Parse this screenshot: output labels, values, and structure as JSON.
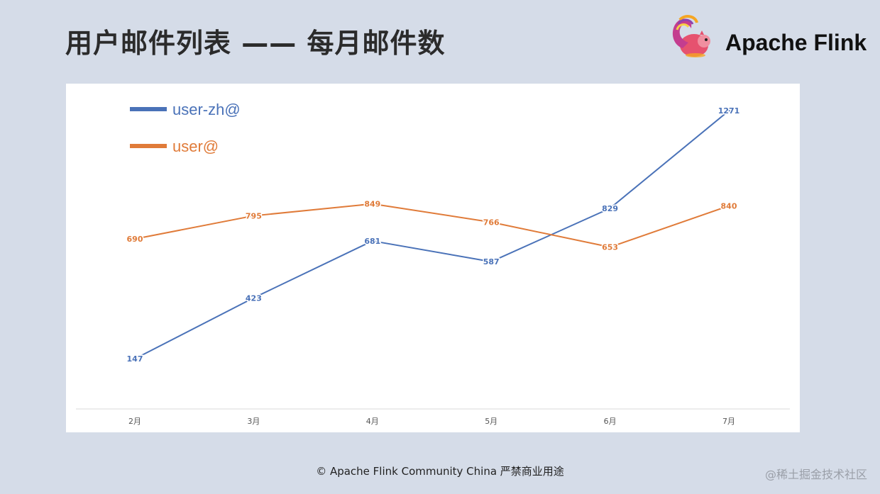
{
  "page": {
    "title": "用户邮件列表 —— 每月邮件数",
    "brand": "Apache Flink",
    "footer": "© Apache Flink Community China  严禁商业用途",
    "watermark": "@稀土掘金技术社区"
  },
  "chart_data": {
    "type": "line",
    "title": "",
    "xlabel": "",
    "ylabel": "",
    "categories": [
      "2月",
      "3月",
      "4月",
      "5月",
      "6月",
      "7月"
    ],
    "ylim": [
      0,
      1400
    ],
    "grid": false,
    "legend_position": "top-left",
    "series": [
      {
        "name": "user-zh@",
        "color": "#4a72b8",
        "values": [
          147,
          423,
          681,
          587,
          829,
          1271
        ]
      },
      {
        "name": "user@",
        "color": "#e07b39",
        "values": [
          690,
          795,
          849,
          766,
          653,
          840
        ]
      }
    ]
  }
}
